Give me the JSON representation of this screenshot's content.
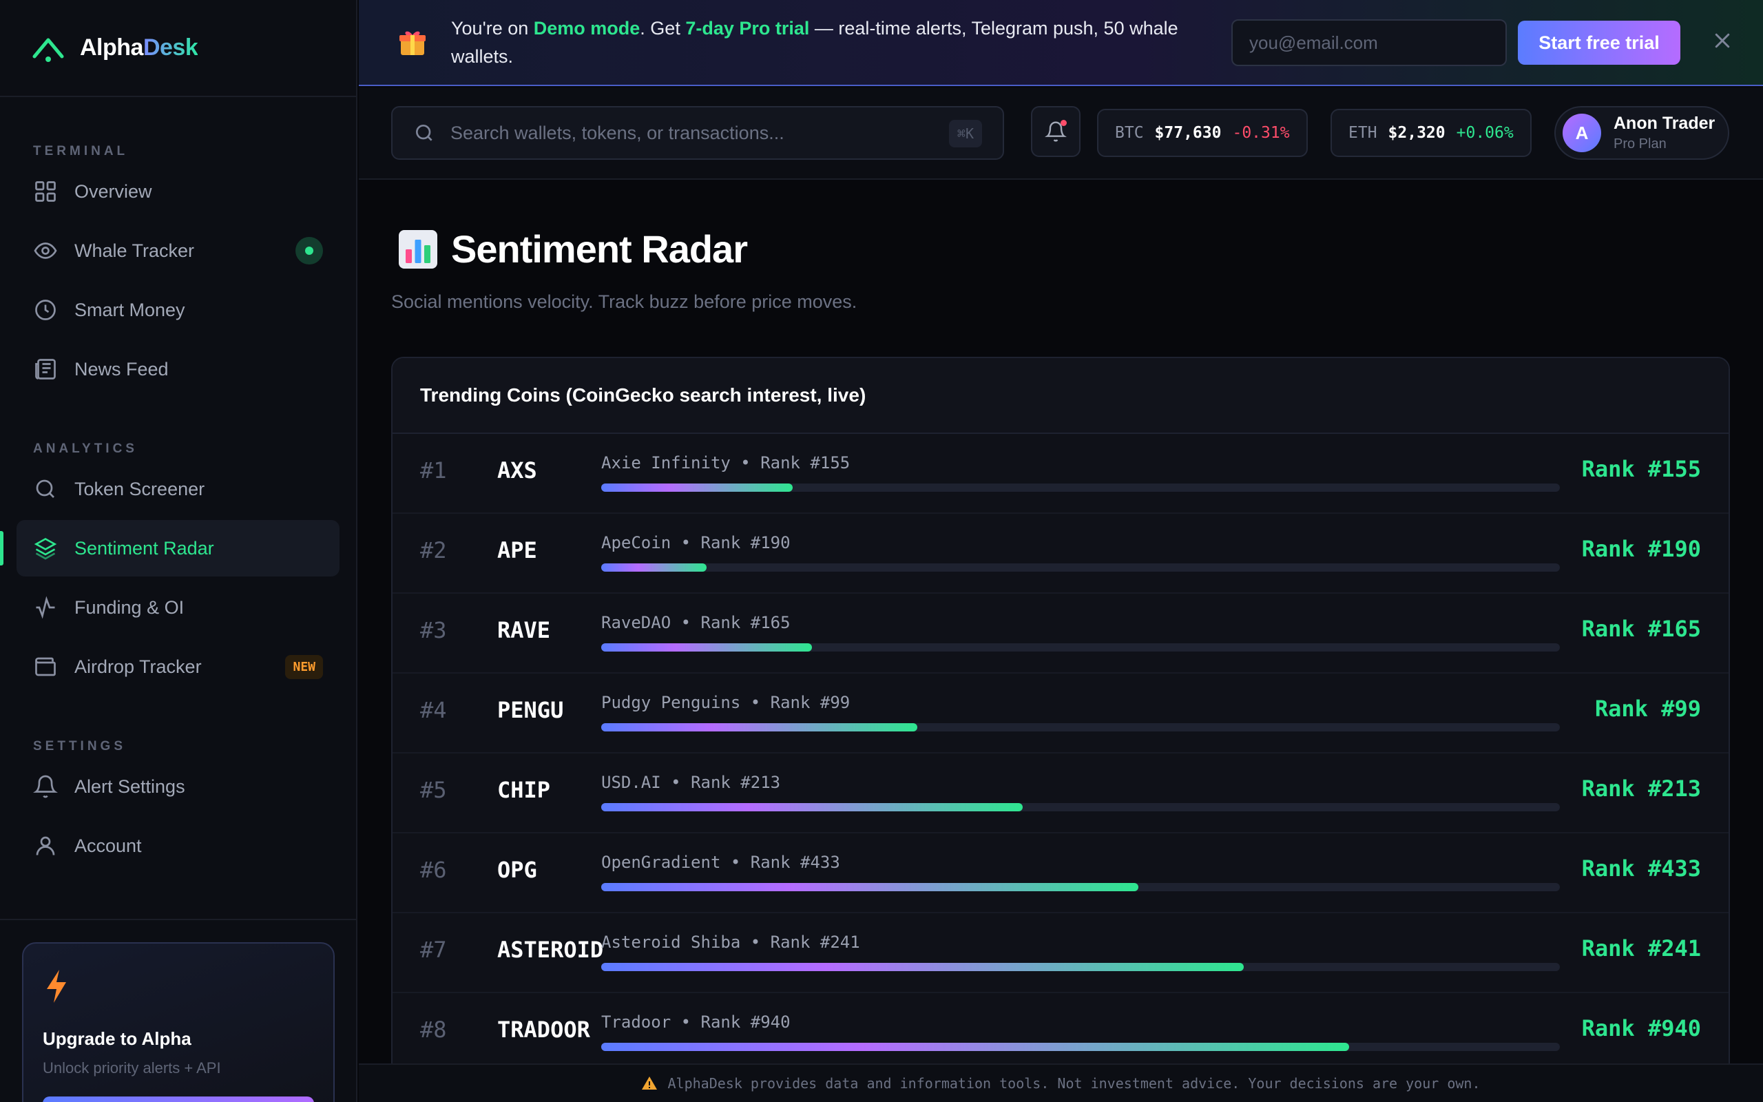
{
  "brand": {
    "name_part1": "Alpha",
    "name_part2": "Desk"
  },
  "sidebar": {
    "sections": [
      {
        "heading": "TERMINAL",
        "items": [
          {
            "label": "Overview",
            "icon": "grid-icon"
          },
          {
            "label": "Whale Tracker",
            "icon": "eye-icon",
            "live": true
          },
          {
            "label": "Smart Money",
            "icon": "clock-icon"
          },
          {
            "label": "News Feed",
            "icon": "newspaper-icon"
          }
        ]
      },
      {
        "heading": "ANALYTICS",
        "items": [
          {
            "label": "Token Screener",
            "icon": "search-icon"
          },
          {
            "label": "Sentiment Radar",
            "icon": "layers-icon",
            "active": true
          },
          {
            "label": "Funding & OI",
            "icon": "activity-icon"
          },
          {
            "label": "Airdrop Tracker",
            "icon": "wallet-icon",
            "badge": "NEW"
          }
        ]
      },
      {
        "heading": "SETTINGS",
        "items": [
          {
            "label": "Alert Settings",
            "icon": "bell-icon"
          },
          {
            "label": "Account",
            "icon": "user-icon"
          }
        ]
      }
    ],
    "upgrade": {
      "title": "Upgrade to Alpha",
      "subtitle": "Unlock priority alerts + API"
    }
  },
  "promo": {
    "text_1": "You're on ",
    "highlight_1": "Demo mode",
    "text_2": ". Get ",
    "highlight_2": "7-day Pro trial",
    "text_3": " — real-time alerts, Telegram push, 50 whale wallets.",
    "email_placeholder": "you@email.com",
    "cta": "Start free trial"
  },
  "header": {
    "search_placeholder": "Search wallets, tokens, or transactions...",
    "search_shortcut": "⌘K",
    "tickers": [
      {
        "symbol": "BTC",
        "price": "$77,630",
        "change": "-0.31%",
        "direction": "down"
      },
      {
        "symbol": "ETH",
        "price": "$2,320",
        "change": "+0.06%",
        "direction": "up"
      }
    ],
    "user": {
      "initial": "A",
      "name": "Anon Trader",
      "plan": "Pro Plan"
    }
  },
  "page": {
    "title": "Sentiment Radar",
    "subtitle": "Social mentions velocity. Track buzz before price moves.",
    "card_title": "Trending Coins (CoinGecko search interest, live)"
  },
  "trending": [
    {
      "rank": "#1",
      "symbol": "AXS",
      "name": "Axie Infinity",
      "market_rank": "Rank #155",
      "score_pct": 20
    },
    {
      "rank": "#2",
      "symbol": "APE",
      "name": "ApeCoin",
      "market_rank": "Rank #190",
      "score_pct": 11
    },
    {
      "rank": "#3",
      "symbol": "RAVE",
      "name": "RaveDAO",
      "market_rank": "Rank #165",
      "score_pct": 22
    },
    {
      "rank": "#4",
      "symbol": "PENGU",
      "name": "Pudgy Penguins",
      "market_rank": "Rank #99",
      "score_pct": 33
    },
    {
      "rank": "#5",
      "symbol": "CHIP",
      "name": "USD.AI",
      "market_rank": "Rank #213",
      "score_pct": 44
    },
    {
      "rank": "#6",
      "symbol": "OPG",
      "name": "OpenGradient",
      "market_rank": "Rank #433",
      "score_pct": 56
    },
    {
      "rank": "#7",
      "symbol": "ASTEROID",
      "name": "Asteroid Shiba",
      "market_rank": "Rank #241",
      "score_pct": 67
    },
    {
      "rank": "#8",
      "symbol": "TRADOOR",
      "name": "Tradoor",
      "market_rank": "Rank #940",
      "score_pct": 78
    }
  ],
  "footer": {
    "disclaimer": "AlphaDesk provides data and information tools. Not investment advice. Your decisions are your own."
  },
  "colors": {
    "accent": "#2ee68f",
    "negative": "#ff4d6a",
    "brand_gradient_start": "#5b7cff",
    "brand_gradient_end": "#b56cff"
  }
}
